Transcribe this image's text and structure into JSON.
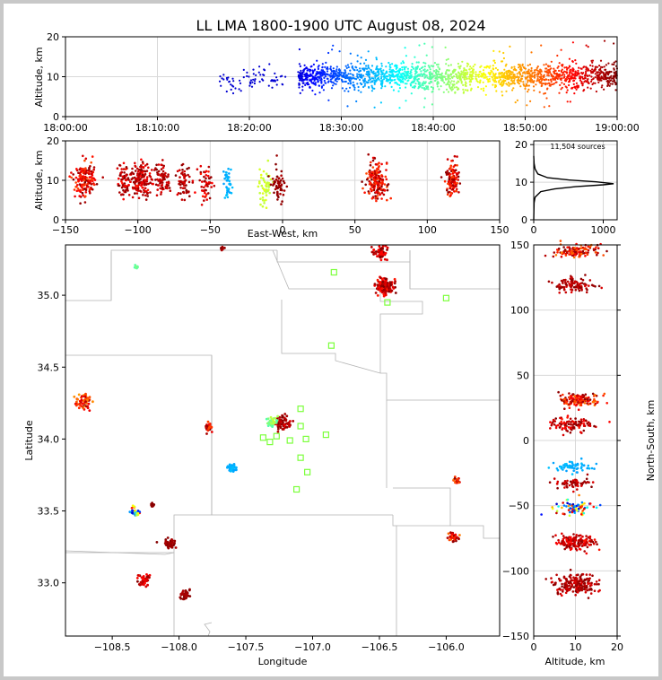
{
  "figure": {
    "title": "LL LMA 1800-1900 UTC August 08, 2024"
  },
  "chart_data": [
    {
      "panel": "time-altitude",
      "type": "scatter",
      "ylabel": "Altitude, km",
      "x_ticks": [
        "18:00:00",
        "18:10:00",
        "18:20:00",
        "18:30:00",
        "18:40:00",
        "18:50:00",
        "19:00:00"
      ],
      "xlim_minutes": [
        0,
        60
      ],
      "ylim": [
        0,
        20
      ],
      "y_ticks": [
        0,
        10,
        20
      ],
      "grid": true,
      "color_by": "time (jet colormap)",
      "clusters": [
        {
          "t": [
            16.5,
            19.0
          ],
          "alt": 9,
          "spread": 1.2,
          "n": 22
        },
        {
          "t": [
            19.0,
            22.0
          ],
          "alt": 9.5,
          "spread": 1.5,
          "n": 30
        },
        {
          "t": [
            22.0,
            24.0
          ],
          "alt": 9,
          "spread": 1.2,
          "n": 18
        },
        {
          "t": [
            25.3,
            60.0
          ],
          "alt": 10,
          "spread": 1.6,
          "n": 1900
        }
      ]
    },
    {
      "panel": "east-west-altitude",
      "type": "scatter",
      "xlabel": "East-West, km",
      "ylabel": "Altitude, km",
      "xlim": [
        -150,
        150
      ],
      "ylim": [
        0,
        20
      ],
      "x_ticks": [
        -150,
        -100,
        -50,
        0,
        50,
        100,
        150
      ],
      "y_ticks": [
        0,
        10,
        20
      ],
      "grid": true,
      "clusters": [
        {
          "x": -137,
          "w": 6,
          "alt": 10,
          "n": 160,
          "c": [
            0.8,
            1.0
          ]
        },
        {
          "x": -110,
          "w": 4,
          "alt": 10,
          "n": 60,
          "c": [
            0.85,
            1.0
          ]
        },
        {
          "x": -98,
          "w": 6,
          "alt": 10,
          "n": 150,
          "c": [
            0.85,
            1.0
          ]
        },
        {
          "x": -83,
          "w": 4,
          "alt": 10,
          "n": 80,
          "c": [
            0.9,
            1.0
          ]
        },
        {
          "x": -68,
          "w": 4,
          "alt": 10,
          "n": 60,
          "c": [
            0.9,
            1.0
          ]
        },
        {
          "x": -53,
          "w": 4,
          "alt": 9,
          "n": 50,
          "c": [
            0.85,
            1.0
          ]
        },
        {
          "x": -38,
          "w": 2,
          "alt": 9,
          "n": 40,
          "c": [
            0.28,
            0.32
          ]
        },
        {
          "x": -12,
          "w": 4,
          "alt": 9,
          "n": 50,
          "c": [
            0.55,
            0.6
          ]
        },
        {
          "x": -3,
          "w": 4,
          "alt": 9,
          "n": 60,
          "c": [
            0.95,
            1.0
          ]
        },
        {
          "x": 65,
          "w": 6,
          "alt": 10,
          "n": 180,
          "c": [
            0.8,
            1.0
          ]
        },
        {
          "x": 117,
          "w": 4,
          "alt": 10,
          "n": 120,
          "c": [
            0.8,
            1.0
          ]
        }
      ]
    },
    {
      "panel": "altitude-histogram",
      "type": "line",
      "annotation": "11,504 sources",
      "xlim": [
        0,
        1200
      ],
      "ylim": [
        0,
        21
      ],
      "x_ticks": [
        0,
        1000
      ],
      "y_ticks": [
        0,
        10,
        20
      ],
      "curve": [
        {
          "x": 0,
          "y": 0
        },
        {
          "x": 5,
          "y": 4.5
        },
        {
          "x": 20,
          "y": 6
        },
        {
          "x": 100,
          "y": 7.5
        },
        {
          "x": 300,
          "y": 8.2
        },
        {
          "x": 600,
          "y": 8.8
        },
        {
          "x": 1000,
          "y": 9.3
        },
        {
          "x": 1150,
          "y": 9.6
        },
        {
          "x": 900,
          "y": 10.1
        },
        {
          "x": 500,
          "y": 10.6
        },
        {
          "x": 200,
          "y": 11.2
        },
        {
          "x": 60,
          "y": 12.2
        },
        {
          "x": 20,
          "y": 13.5
        },
        {
          "x": 5,
          "y": 15
        },
        {
          "x": 0,
          "y": 17
        }
      ]
    },
    {
      "panel": "plan-view-map",
      "type": "scatter",
      "xlabel": "Longitude",
      "ylabel": "Latitude",
      "xlim": [
        -108.85,
        -105.6
      ],
      "ylim": [
        32.63,
        35.35
      ],
      "x_ticks": [
        "−108.5",
        "−108.0",
        "−107.5",
        "−107.0",
        "−106.5",
        "−106.0"
      ],
      "x_tick_values": [
        -108.5,
        -108.0,
        -107.5,
        -107.0,
        -106.5,
        -106.0
      ],
      "y_ticks": [
        "33.0",
        "33.5",
        "34.0",
        "34.5",
        "35.0"
      ],
      "y_tick_values": [
        33.0,
        33.5,
        34.0,
        34.5,
        35.0
      ],
      "stations": [
        {
          "lon": -106.84,
          "lat": 35.16
        },
        {
          "lon": -106.44,
          "lat": 34.95
        },
        {
          "lon": -106.0,
          "lat": 34.98
        },
        {
          "lon": -106.86,
          "lat": 34.65
        },
        {
          "lon": -107.09,
          "lat": 34.21
        },
        {
          "lon": -107.09,
          "lat": 34.09
        },
        {
          "lon": -107.37,
          "lat": 34.01
        },
        {
          "lon": -107.27,
          "lat": 34.02
        },
        {
          "lon": -107.32,
          "lat": 33.98
        },
        {
          "lon": -107.17,
          "lat": 33.99
        },
        {
          "lon": -107.05,
          "lat": 34.0
        },
        {
          "lon": -106.9,
          "lat": 34.03
        },
        {
          "lon": -107.09,
          "lat": 33.87
        },
        {
          "lon": -107.04,
          "lat": 33.77
        },
        {
          "lon": -107.12,
          "lat": 33.65
        }
      ],
      "clusters": [
        {
          "lon": -106.46,
          "lat": 35.06,
          "s": 0.03,
          "n": 150,
          "c": [
            0.85,
            1.0
          ]
        },
        {
          "lon": -106.49,
          "lat": 35.3,
          "s": 0.03,
          "n": 60,
          "c": [
            0.85,
            1.0
          ]
        },
        {
          "lon": -108.72,
          "lat": 34.26,
          "s": 0.03,
          "n": 60,
          "c": [
            0.7,
            1.0
          ]
        },
        {
          "lon": -107.22,
          "lat": 34.11,
          "s": 0.03,
          "n": 70,
          "c": [
            0.9,
            1.0
          ]
        },
        {
          "lon": -107.3,
          "lat": 34.12,
          "s": 0.02,
          "n": 40,
          "c": [
            0.45,
            0.6
          ]
        },
        {
          "lon": -107.78,
          "lat": 34.08,
          "s": 0.02,
          "n": 30,
          "c": [
            0.8,
            1.0
          ]
        },
        {
          "lon": -107.6,
          "lat": 33.8,
          "s": 0.015,
          "n": 40,
          "c": [
            0.28,
            0.32
          ]
        },
        {
          "lon": -108.33,
          "lat": 33.5,
          "s": 0.02,
          "n": 30,
          "c": [
            0.05,
            0.9
          ]
        },
        {
          "lon": -108.2,
          "lat": 33.54,
          "s": 0.01,
          "n": 12,
          "c": [
            0.95,
            1.0
          ]
        },
        {
          "lon": -108.07,
          "lat": 33.27,
          "s": 0.02,
          "n": 40,
          "c": [
            0.95,
            1.0
          ]
        },
        {
          "lon": -108.26,
          "lat": 33.02,
          "s": 0.025,
          "n": 50,
          "c": [
            0.85,
            1.0
          ]
        },
        {
          "lon": -107.96,
          "lat": 32.92,
          "s": 0.02,
          "n": 35,
          "c": [
            0.95,
            1.0
          ]
        },
        {
          "lon": -105.94,
          "lat": 33.32,
          "s": 0.02,
          "n": 35,
          "c": [
            0.75,
            1.0
          ]
        },
        {
          "lon": -105.92,
          "lat": 33.71,
          "s": 0.015,
          "n": 20,
          "c": [
            0.75,
            1.0
          ]
        },
        {
          "lon": -108.32,
          "lat": 35.19,
          "s": 0.01,
          "n": 8,
          "c": [
            0.45,
            0.5
          ]
        },
        {
          "lon": -107.68,
          "lat": 35.32,
          "s": 0.01,
          "n": 8,
          "c": [
            0.95,
            1.0
          ]
        }
      ]
    },
    {
      "panel": "altitude-north-south",
      "type": "scatter",
      "xlabel": "Altitude, km",
      "ylabel": "North-South, km",
      "xlim": [
        0,
        20
      ],
      "ylim": [
        -150,
        150
      ],
      "x_ticks": [
        0,
        10,
        20
      ],
      "y_ticks": [
        -150,
        -100,
        -50,
        0,
        50,
        100,
        150
      ],
      "grid": true,
      "clusters": [
        {
          "ns": 145,
          "w": 4,
          "alt": 10,
          "n": 120,
          "c": [
            0.75,
            1.0
          ]
        },
        {
          "ns": 119,
          "w": 4,
          "alt": 10,
          "n": 100,
          "c": [
            0.9,
            1.0
          ]
        },
        {
          "ns": 31,
          "w": 4,
          "alt": 11,
          "n": 140,
          "c": [
            0.75,
            1.0
          ]
        },
        {
          "ns": 12,
          "w": 4,
          "alt": 9,
          "n": 100,
          "c": [
            0.85,
            1.0
          ]
        },
        {
          "ns": -20,
          "w": 3,
          "alt": 9,
          "n": 60,
          "c": [
            0.28,
            0.32
          ]
        },
        {
          "ns": -33,
          "w": 3,
          "alt": 10,
          "n": 60,
          "c": [
            0.9,
            1.0
          ]
        },
        {
          "ns": -52,
          "w": 4,
          "alt": 10,
          "n": 80,
          "c": [
            0.05,
            1.0
          ]
        },
        {
          "ns": -78,
          "w": 4,
          "alt": 10,
          "n": 150,
          "c": [
            0.85,
            1.0
          ]
        },
        {
          "ns": -110,
          "w": 6,
          "alt": 10,
          "n": 200,
          "c": [
            0.9,
            1.0
          ]
        }
      ]
    }
  ]
}
